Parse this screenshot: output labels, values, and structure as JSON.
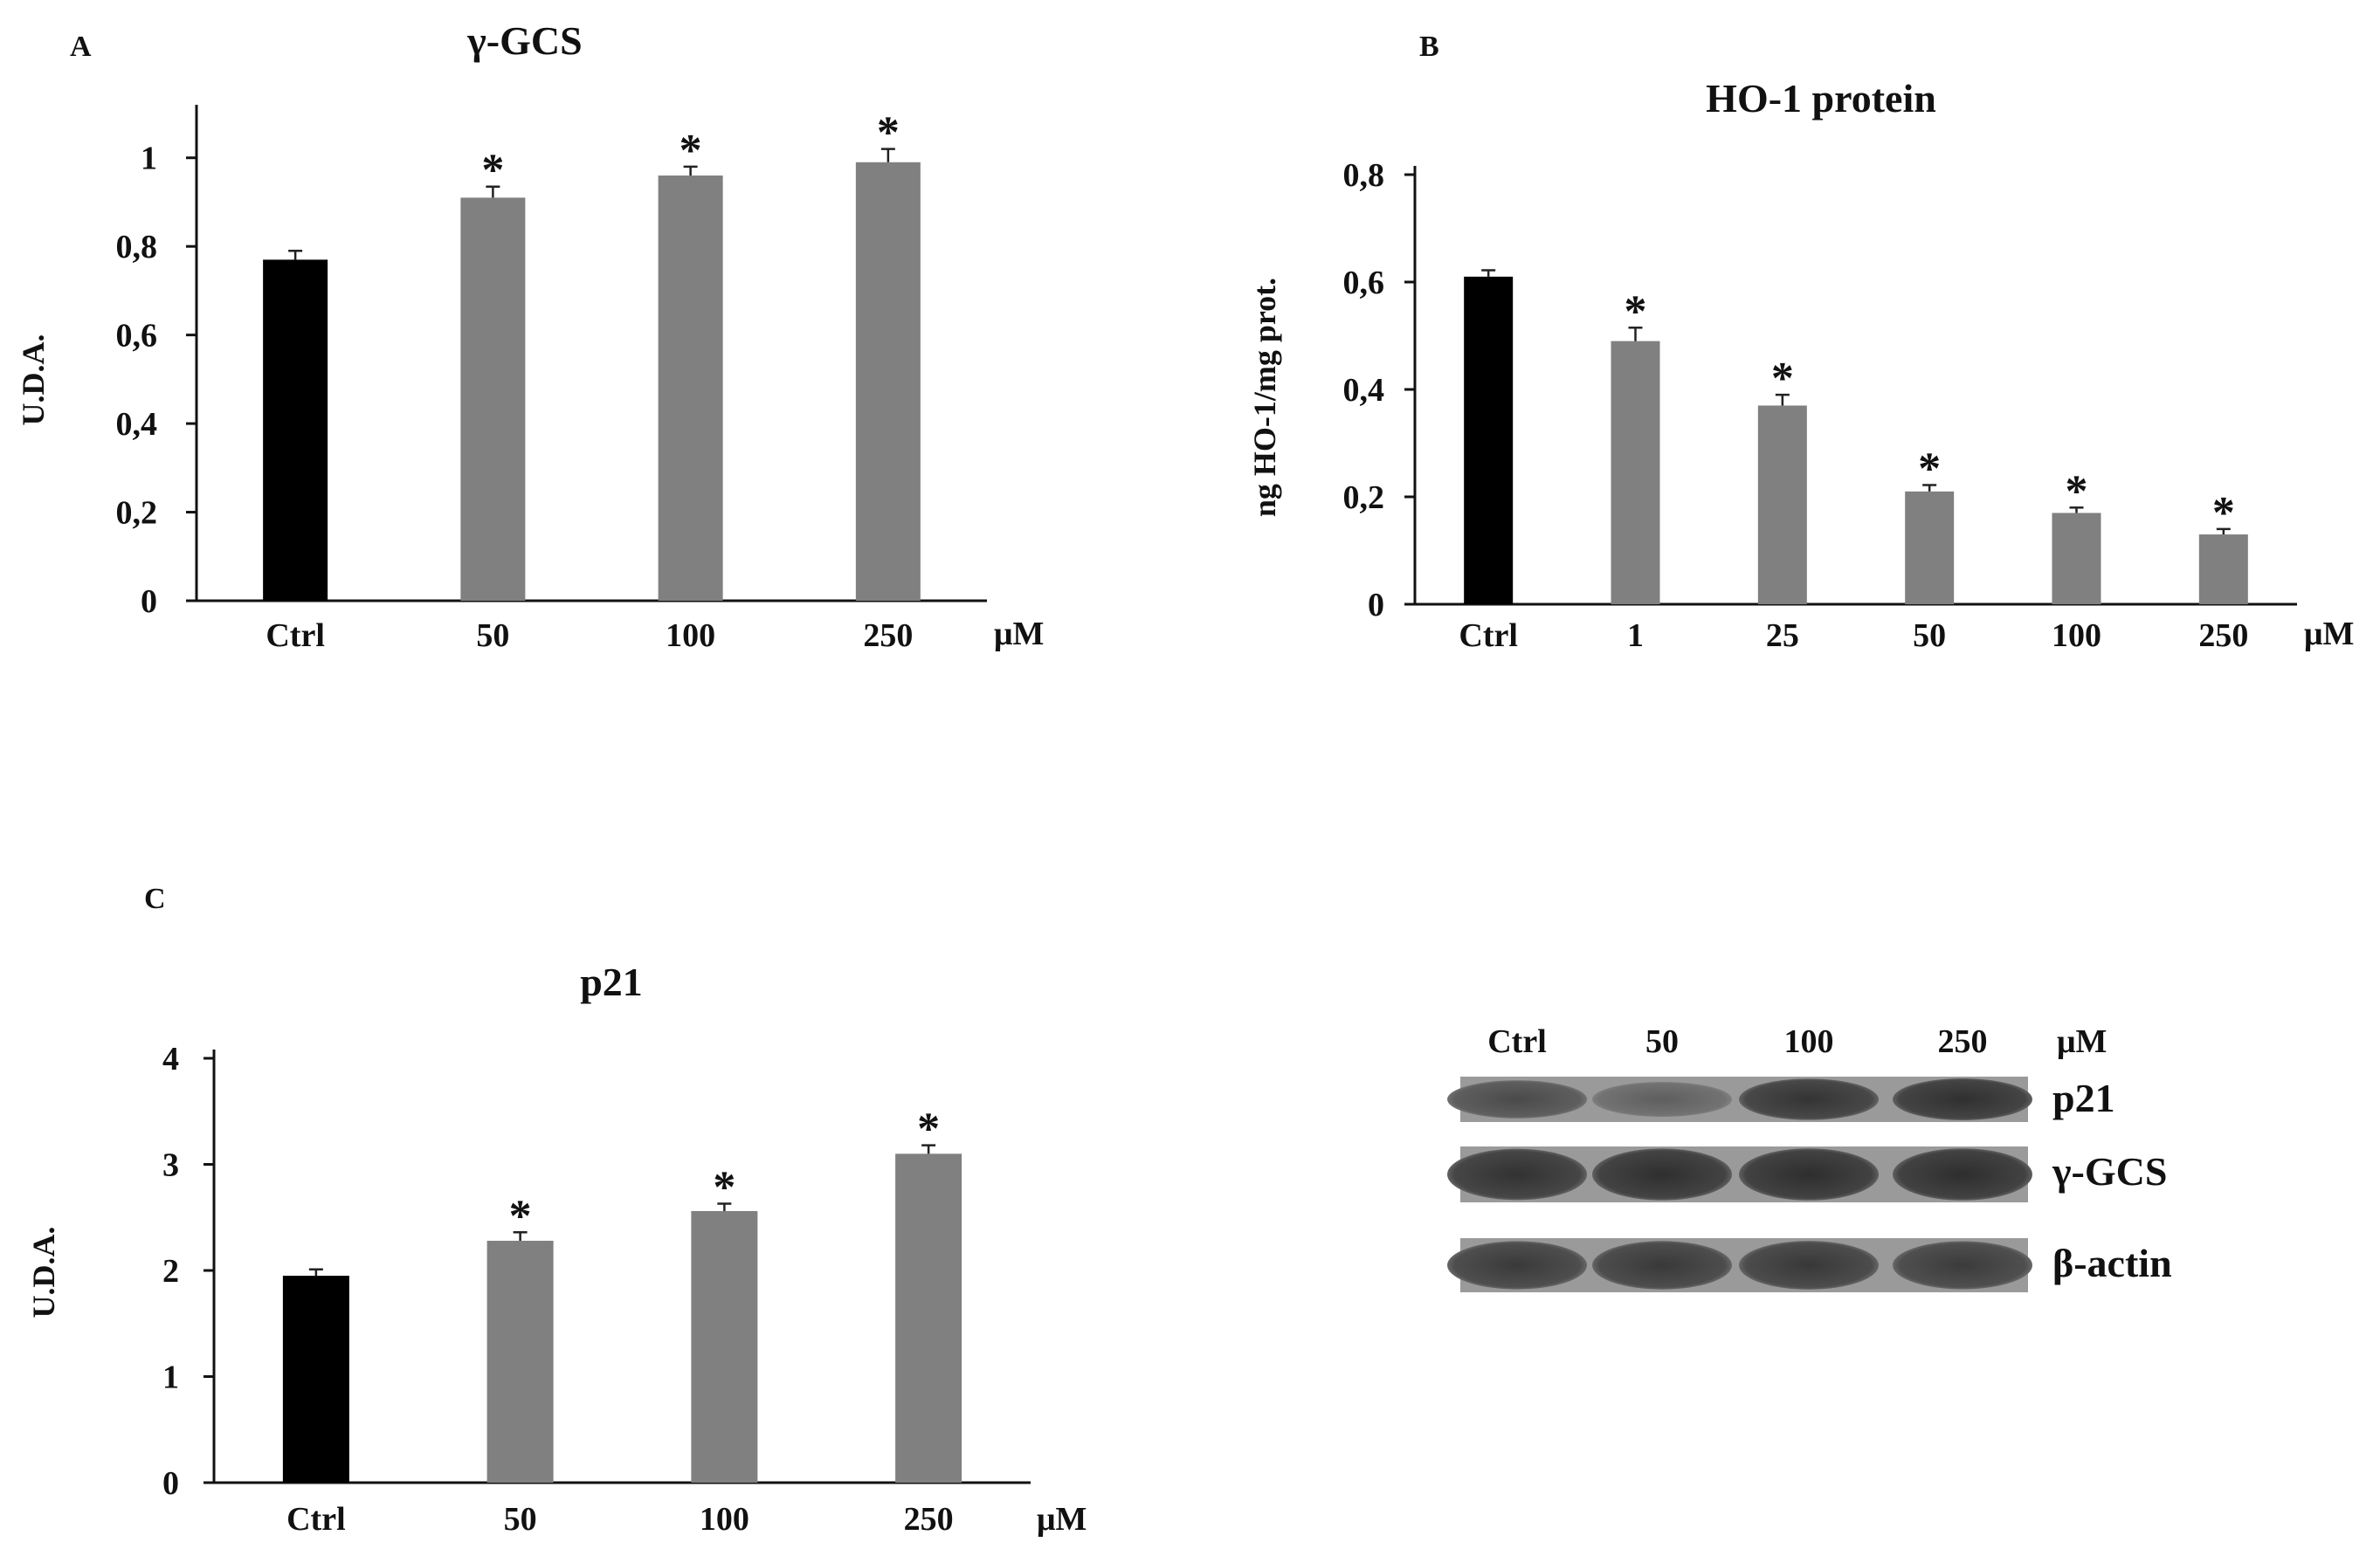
{
  "chart_data": [
    {
      "panel": "A",
      "type": "bar",
      "title": "γ-GCS",
      "ylabel": "U.D.A.",
      "xlabel": "",
      "unit": "μM",
      "categories": [
        "Ctrl",
        "50",
        "100",
        "250"
      ],
      "values": [
        0.77,
        0.91,
        0.96,
        0.99
      ],
      "errors": [
        0.02,
        0.025,
        0.02,
        0.03
      ],
      "significance": [
        "",
        "*",
        "*",
        "*"
      ],
      "colors": [
        "#000000",
        "#808080",
        "#808080",
        "#808080"
      ],
      "ylim": [
        0,
        1.1
      ],
      "yticks": [
        0,
        0.2,
        0.4,
        0.6,
        0.8,
        1
      ],
      "ytick_labels": [
        "0",
        "0,2",
        "0,4",
        "0,6",
        "0,8",
        "1"
      ],
      "grid": false,
      "legend": "none"
    },
    {
      "panel": "B",
      "type": "bar",
      "title": "HO-1 protein",
      "ylabel": "ng HO-1/mg prot.",
      "xlabel": "",
      "unit": "μM",
      "categories": [
        "Ctrl",
        "1",
        "25",
        "50",
        "100",
        "250"
      ],
      "values": [
        0.61,
        0.49,
        0.37,
        0.21,
        0.17,
        0.13
      ],
      "errors": [
        0.012,
        0.025,
        0.02,
        0.012,
        0.01,
        0.01
      ],
      "significance": [
        "",
        "*",
        "*",
        "*",
        "*",
        "*"
      ],
      "colors": [
        "#000000",
        "#808080",
        "#808080",
        "#808080",
        "#808080",
        "#808080"
      ],
      "ylim": [
        0,
        0.8
      ],
      "yticks": [
        0,
        0.2,
        0.4,
        0.6,
        0.8
      ],
      "ytick_labels": [
        "0",
        "0,2",
        "0,4",
        "0,6",
        "0,8"
      ],
      "grid": false,
      "legend": "none"
    },
    {
      "panel": "C",
      "type": "bar",
      "title": "p21",
      "ylabel": "U.D.A.",
      "xlabel": "",
      "unit": "μM",
      "categories": [
        "Ctrl",
        "50",
        "100",
        "250"
      ],
      "values": [
        1.95,
        2.28,
        2.56,
        3.1
      ],
      "errors": [
        0.06,
        0.08,
        0.07,
        0.08
      ],
      "significance": [
        "",
        "*",
        "*",
        "*"
      ],
      "colors": [
        "#000000",
        "#808080",
        "#808080",
        "#808080"
      ],
      "ylim": [
        0,
        4
      ],
      "yticks": [
        0,
        1,
        2,
        3,
        4
      ],
      "ytick_labels": [
        "0",
        "1",
        "2",
        "3",
        "4"
      ],
      "grid": false,
      "legend": "none"
    }
  ],
  "western_blot": {
    "lanes": [
      "Ctrl",
      "50",
      "100",
      "250"
    ],
    "unit": "μM",
    "bands": [
      {
        "label": "p21",
        "intensity": [
          0.72,
          0.55,
          0.9,
          0.93
        ]
      },
      {
        "label": "γ-GCS",
        "intensity": [
          0.92,
          0.94,
          0.95,
          0.95
        ]
      },
      {
        "label": "β-actin",
        "intensity": [
          0.85,
          0.86,
          0.87,
          0.84
        ]
      }
    ]
  }
}
